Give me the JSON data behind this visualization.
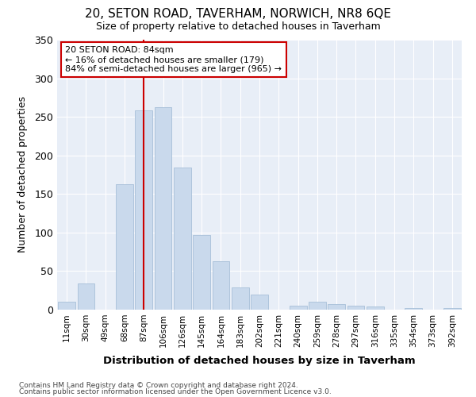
{
  "title": "20, SETON ROAD, TAVERHAM, NORWICH, NR8 6QE",
  "subtitle": "Size of property relative to detached houses in Taverham",
  "xlabel": "Distribution of detached houses by size in Taverham",
  "ylabel": "Number of detached properties",
  "categories": [
    "11sqm",
    "30sqm",
    "49sqm",
    "68sqm",
    "87sqm",
    "106sqm",
    "126sqm",
    "145sqm",
    "164sqm",
    "183sqm",
    "202sqm",
    "221sqm",
    "240sqm",
    "259sqm",
    "278sqm",
    "297sqm",
    "316sqm",
    "335sqm",
    "354sqm",
    "373sqm",
    "392sqm"
  ],
  "values": [
    10,
    34,
    0,
    163,
    258,
    262,
    184,
    97,
    63,
    29,
    20,
    0,
    5,
    10,
    7,
    5,
    4,
    0,
    2,
    0,
    2
  ],
  "bar_color": "#c9d9ec",
  "bar_edge_color": "#a8c0d8",
  "vline_x": 4,
  "vline_color": "#cc0000",
  "annotation_text": "20 SETON ROAD: 84sqm\n← 16% of detached houses are smaller (179)\n84% of semi-detached houses are larger (965) →",
  "annotation_box_color": "#ffffff",
  "annotation_box_edge": "#cc0000",
  "ylim": [
    0,
    350
  ],
  "yticks": [
    0,
    50,
    100,
    150,
    200,
    250,
    300,
    350
  ],
  "footer1": "Contains HM Land Registry data © Crown copyright and database right 2024.",
  "footer2": "Contains public sector information licensed under the Open Government Licence v3.0.",
  "bg_color": "#ffffff",
  "plot_bg_color": "#e8eef7"
}
